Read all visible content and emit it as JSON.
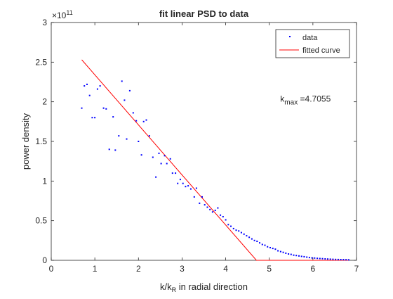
{
  "figure": {
    "background": "#ffffff"
  },
  "chart_data": {
    "type": "scatter",
    "title": "fit linear PSD to data",
    "xlabel": {
      "main": "k/k",
      "sub": "R",
      "rest": " in radial direction"
    },
    "ylabel": "power density",
    "xlim": [
      0,
      7
    ],
    "ylim": [
      0,
      300000000000.0
    ],
    "x_ticks": [
      "0",
      "1",
      "2",
      "3",
      "4",
      "5",
      "6",
      "7"
    ],
    "y_ticks": [
      "0",
      "0.5",
      "1",
      "1.5",
      "2",
      "2.5",
      "3"
    ],
    "y_exponent": {
      "base": "×10",
      "power": "11"
    },
    "grid": false,
    "box": true,
    "legend_position": "top-right",
    "annotation": {
      "prefix": "k",
      "sub": "max",
      "rest": " =4.7055",
      "x": 5.25,
      "y": 200000000000.0
    },
    "series": [
      {
        "name": "data",
        "style": "dots",
        "color": "#0000ff",
        "points": [
          [
            0.7,
            192000000000.0
          ],
          [
            0.76,
            220000000000.0
          ],
          [
            0.82,
            222000000000.0
          ],
          [
            0.88,
            208000000000.0
          ],
          [
            0.94,
            180000000000.0
          ],
          [
            1.0,
            180000000000.0
          ],
          [
            1.06,
            216000000000.0
          ],
          [
            1.12,
            220000000000.0
          ],
          [
            1.2,
            192000000000.0
          ],
          [
            1.26,
            191000000000.0
          ],
          [
            1.33,
            140000000000.0
          ],
          [
            1.42,
            181000000000.0
          ],
          [
            1.47,
            139000000000.0
          ],
          [
            1.55,
            157000000000.0
          ],
          [
            1.62,
            226000000000.0
          ],
          [
            1.68,
            202000000000.0
          ],
          [
            1.73,
            153000000000.0
          ],
          [
            1.8,
            214000000000.0
          ],
          [
            1.88,
            186000000000.0
          ],
          [
            1.95,
            176000000000.0
          ],
          [
            2.0,
            150000000000.0
          ],
          [
            2.07,
            133000000000.0
          ],
          [
            2.12,
            175000000000.0
          ],
          [
            2.18,
            177000000000.0
          ],
          [
            2.25,
            157000000000.0
          ],
          [
            2.33,
            130000000000.0
          ],
          [
            2.4,
            105000000000.0
          ],
          [
            2.47,
            135000000000.0
          ],
          [
            2.52,
            122000000000.0
          ],
          [
            2.6,
            132000000000.0
          ],
          [
            2.65,
            122000000000.0
          ],
          [
            2.73,
            128000000000.0
          ],
          [
            2.78,
            110000000000.0
          ],
          [
            2.85,
            110000000000.0
          ],
          [
            2.9,
            97000000000.0
          ],
          [
            2.96,
            102000000000.0
          ],
          [
            3.02,
            97000000000.0
          ],
          [
            3.08,
            93000000000.0
          ],
          [
            3.14,
            94000000000.0
          ],
          [
            3.2,
            90000000000.0
          ],
          [
            3.28,
            80000000000.0
          ],
          [
            3.33,
            91000000000.0
          ],
          [
            3.4,
            72000000000.0
          ],
          [
            3.46,
            80000000000.0
          ],
          [
            3.52,
            70000000000.0
          ],
          [
            3.58,
            67000000000.0
          ],
          [
            3.64,
            64000000000.0
          ],
          [
            3.7,
            61000000000.0
          ],
          [
            3.76,
            63000000000.0
          ],
          [
            3.82,
            66000000000.0
          ],
          [
            3.88,
            57000000000.0
          ],
          [
            3.94,
            55000000000.0
          ],
          [
            4.0,
            51000000000.0
          ],
          [
            4.06,
            45000000000.0
          ],
          [
            4.12,
            43000000000.0
          ],
          [
            4.18,
            40000000000.0
          ],
          [
            4.24,
            38000000000.0
          ],
          [
            4.3,
            37000000000.0
          ],
          [
            4.36,
            35000000000.0
          ],
          [
            4.42,
            33000000000.0
          ],
          [
            4.48,
            31000000000.0
          ],
          [
            4.54,
            29000000000.0
          ],
          [
            4.6,
            27000000000.0
          ],
          [
            4.66,
            25000000000.0
          ],
          [
            4.72,
            24000000000.0
          ],
          [
            4.78,
            22000000000.0
          ],
          [
            4.84,
            20000000000.0
          ],
          [
            4.9,
            19000000000.0
          ],
          [
            4.96,
            17000000000.0
          ],
          [
            5.02,
            16000000000.0
          ],
          [
            5.08,
            15000000000.0
          ],
          [
            5.14,
            14000000000.0
          ],
          [
            5.2,
            12000000000.0
          ],
          [
            5.26,
            11000000000.0
          ],
          [
            5.32,
            10000000000.0
          ],
          [
            5.38,
            9000000000.0
          ],
          [
            5.44,
            8000000000.0
          ],
          [
            5.5,
            7500000000.0
          ],
          [
            5.56,
            6500000000.0
          ],
          [
            5.62,
            6000000000.0
          ],
          [
            5.68,
            5500000000.0
          ],
          [
            5.74,
            5000000000.0
          ],
          [
            5.8,
            4500000000.0
          ],
          [
            5.86,
            4000000000.0
          ],
          [
            5.92,
            3500000000.0
          ],
          [
            5.98,
            3000000000.0
          ],
          [
            6.04,
            2800000000.0
          ],
          [
            6.1,
            2500000000.0
          ],
          [
            6.16,
            2200000000.0
          ],
          [
            6.22,
            2000000000.0
          ],
          [
            6.28,
            1800000000.0
          ],
          [
            6.34,
            1600000000.0
          ],
          [
            6.4,
            1400000000.0
          ],
          [
            6.46,
            1200000000.0
          ],
          [
            6.52,
            1100000000.0
          ],
          [
            6.58,
            1000000000.0
          ],
          [
            6.64,
            900000000.0
          ],
          [
            6.7,
            800000000.0
          ],
          [
            6.76,
            700000000.0
          ],
          [
            6.82,
            600000000.0
          ]
        ]
      },
      {
        "name": "fitted curve",
        "style": "line",
        "color": "#ff0000",
        "points": [
          [
            0.7,
            253000000000.0
          ],
          [
            4.7055,
            0
          ],
          [
            6.82,
            0
          ]
        ]
      }
    ]
  }
}
